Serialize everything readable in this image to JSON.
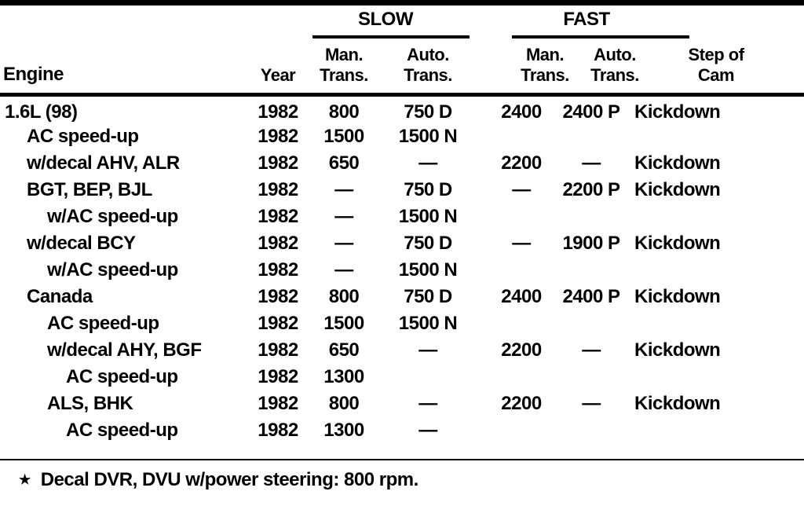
{
  "table": {
    "groups": {
      "slow": "SLOW",
      "fast": "FAST"
    },
    "columns": {
      "engine": "Engine",
      "year": "Year",
      "man_line1": "Man.",
      "man_line2": "Trans.",
      "auto_line1": "Auto.",
      "auto_line2": "Trans.",
      "step_line1": "Step of",
      "step_line2": "Cam"
    },
    "rows": [
      {
        "engine": "1.6L (98)",
        "indent": 0,
        "year": "1982",
        "slow_man": "800",
        "slow_auto": "750 D",
        "fast_man": "2400",
        "fast_auto": "2400 P",
        "step": "Kickdown"
      },
      {
        "engine": "AC speed-up",
        "indent": 1,
        "year": "1982",
        "slow_man": "1500",
        "slow_auto": "1500 N",
        "fast_man": "",
        "fast_auto": "",
        "step": ""
      },
      {
        "engine": "w/decal AHV, ALR",
        "indent": 1,
        "year": "1982",
        "slow_man": "650",
        "slow_auto": "—",
        "fast_man": "2200",
        "fast_auto": "—",
        "step": "Kickdown"
      },
      {
        "engine": "BGT, BEP, BJL",
        "indent": 1,
        "year": "1982",
        "slow_man": "—",
        "slow_auto": "750 D",
        "fast_man": "—",
        "fast_auto": "2200 P",
        "step": "Kickdown"
      },
      {
        "engine": "w/AC speed-up",
        "indent": 2,
        "year": "1982",
        "slow_man": "—",
        "slow_auto": "1500 N",
        "fast_man": "",
        "fast_auto": "",
        "step": ""
      },
      {
        "engine": "w/decal BCY",
        "indent": 1,
        "year": "1982",
        "slow_man": "—",
        "slow_auto": "750 D",
        "fast_man": "—",
        "fast_auto": "1900 P",
        "step": "Kickdown"
      },
      {
        "engine": "w/AC speed-up",
        "indent": 2,
        "year": "1982",
        "slow_man": "—",
        "slow_auto": "1500 N",
        "fast_man": "",
        "fast_auto": "",
        "step": ""
      },
      {
        "engine": "Canada",
        "indent": 1,
        "year": "1982",
        "slow_man": "800",
        "slow_auto": "750 D",
        "fast_man": "2400",
        "fast_auto": "2400 P",
        "step": "Kickdown"
      },
      {
        "engine": "AC speed-up",
        "indent": 2,
        "year": "1982",
        "slow_man": "1500",
        "slow_auto": "1500 N",
        "fast_man": "",
        "fast_auto": "",
        "step": ""
      },
      {
        "engine": "w/decal AHY, BGF",
        "indent": 2,
        "year": "1982",
        "slow_man": "650",
        "slow_auto": "—",
        "fast_man": "2200",
        "fast_auto": "—",
        "step": "Kickdown"
      },
      {
        "engine": "AC speed-up",
        "indent": 3,
        "year": "1982",
        "slow_man": "1300",
        "slow_auto": "",
        "fast_man": "",
        "fast_auto": "",
        "step": ""
      },
      {
        "engine": "ALS, BHK",
        "indent": 2,
        "year": "1982",
        "slow_man": "800",
        "slow_auto": "—",
        "fast_man": "2200",
        "fast_auto": "—",
        "step": "Kickdown"
      },
      {
        "engine": "AC speed-up",
        "indent": 3,
        "year": "1982",
        "slow_man": "1300",
        "slow_auto": "—",
        "fast_man": "",
        "fast_auto": "",
        "step": ""
      }
    ],
    "footnote": {
      "marker": "★",
      "text": "Decal DVR, DVU w/power steering: 800 rpm."
    }
  }
}
